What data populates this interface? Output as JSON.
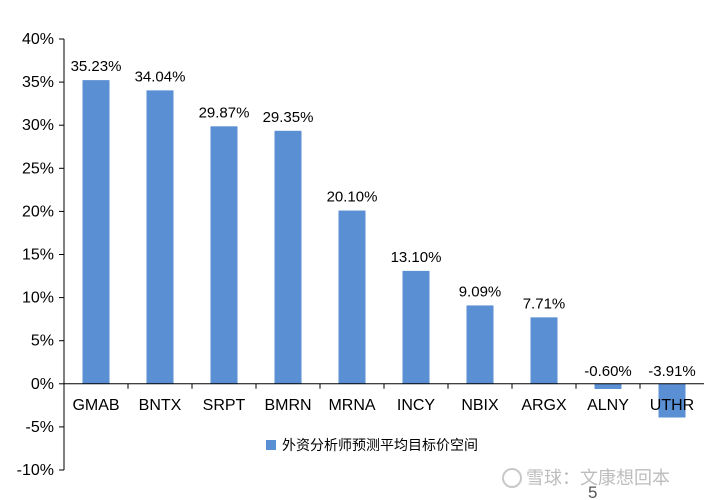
{
  "chart_data": {
    "type": "bar",
    "categories": [
      "GMAB",
      "BNTX",
      "SRPT",
      "BMRN",
      "MRNA",
      "INCY",
      "NBIX",
      "ARGX",
      "ALNY",
      "UTHR"
    ],
    "series": [
      {
        "name": "外资分析师预测平均目标价空间",
        "values": [
          35.23,
          34.04,
          29.87,
          29.35,
          20.1,
          13.1,
          9.09,
          7.71,
          -0.6,
          -3.91
        ],
        "data_labels": [
          "35.23%",
          "34.04%",
          "29.87%",
          "29.35%",
          "20.10%",
          "13.10%",
          "9.09%",
          "7.71%",
          "-0.60%",
          "-3.91%"
        ],
        "color": "#5b8fd4"
      }
    ],
    "ylim": [
      -10,
      40
    ],
    "yticks": [
      40,
      35,
      30,
      25,
      20,
      15,
      10,
      5,
      0,
      -5,
      -10
    ],
    "ytick_labels": [
      "40%",
      "35%",
      "30%",
      "25%",
      "20%",
      "15%",
      "10%",
      "5%",
      "0%",
      "-5%",
      "-10%"
    ],
    "title": "",
    "xlabel": "",
    "ylabel": "",
    "grid": false,
    "legend_position": "bottom-right"
  },
  "watermark": "雪球：文康想回本",
  "page_number": "5"
}
